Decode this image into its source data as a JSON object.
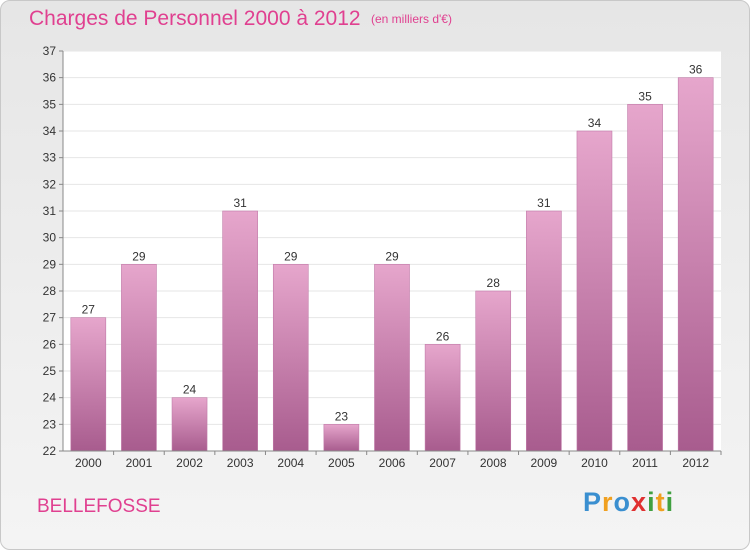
{
  "header": {
    "title": "Charges de Personnel 2000 à 2012",
    "subtitle": "(en milliers d'€)"
  },
  "footer": {
    "commune": "BELLEFOSSE",
    "logo": "Proxiti"
  },
  "colors": {
    "accent": "#e04090",
    "bar_top": "#e6a6cc",
    "bar_bottom": "#a85c8e"
  },
  "chart_data": {
    "type": "bar",
    "categories": [
      "2000",
      "2001",
      "2002",
      "2003",
      "2004",
      "2005",
      "2006",
      "2007",
      "2008",
      "2009",
      "2010",
      "2011",
      "2012"
    ],
    "values": [
      27,
      29,
      24,
      31,
      29,
      23,
      29,
      26,
      28,
      31,
      34,
      35,
      36
    ],
    "title": "Charges de Personnel 2000 à 2012",
    "ylabel": "",
    "xlabel": "",
    "ylim": [
      22,
      37
    ],
    "yticks": [
      22,
      23,
      24,
      25,
      26,
      27,
      28,
      29,
      30,
      31,
      32,
      33,
      34,
      35,
      36,
      37
    ],
    "grid": true,
    "data_labels": true
  }
}
